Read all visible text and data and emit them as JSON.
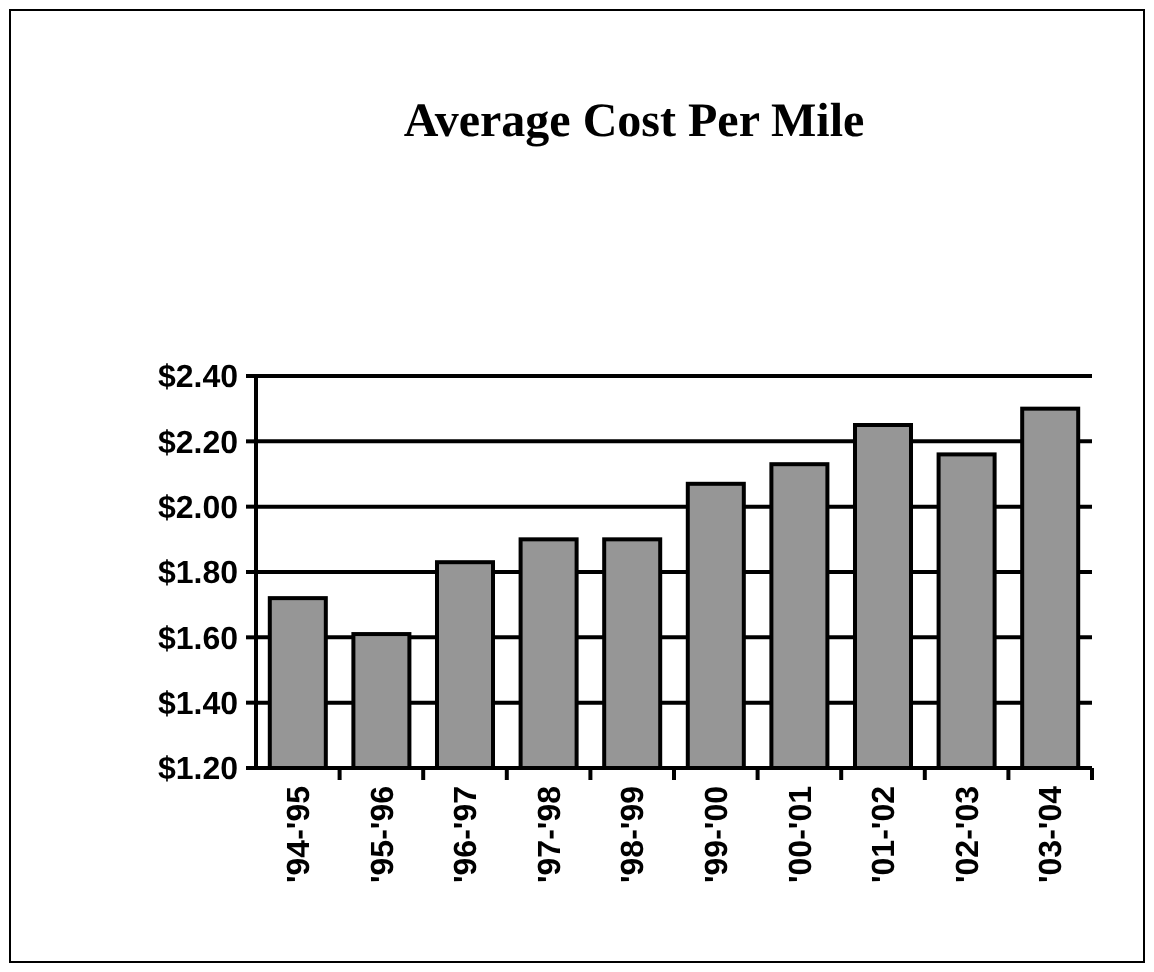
{
  "chart_data": {
    "type": "bar",
    "title": "Average Cost Per Mile",
    "categories": [
      "'94-'95",
      "'95-'96",
      "'96-'97",
      "'97-'98",
      "'98-'99",
      "'99-'00",
      "'00-'01",
      "'01-'02",
      "'02-'03",
      "'03-'04"
    ],
    "values": [
      1.72,
      1.61,
      1.83,
      1.9,
      1.9,
      2.07,
      2.13,
      2.25,
      2.16,
      2.3
    ],
    "color": "#969696",
    "ylim": [
      1.2,
      2.4
    ],
    "yticks": [
      {
        "value": 1.2,
        "label": "$1.20"
      },
      {
        "value": 1.4,
        "label": "$1.40"
      },
      {
        "value": 1.6,
        "label": "$1.60"
      },
      {
        "value": 1.8,
        "label": "$1.80"
      },
      {
        "value": 2.0,
        "label": "$2.00"
      },
      {
        "value": 2.2,
        "label": "$2.20"
      },
      {
        "value": 2.4,
        "label": "$2.40"
      }
    ],
    "grid": "y"
  }
}
